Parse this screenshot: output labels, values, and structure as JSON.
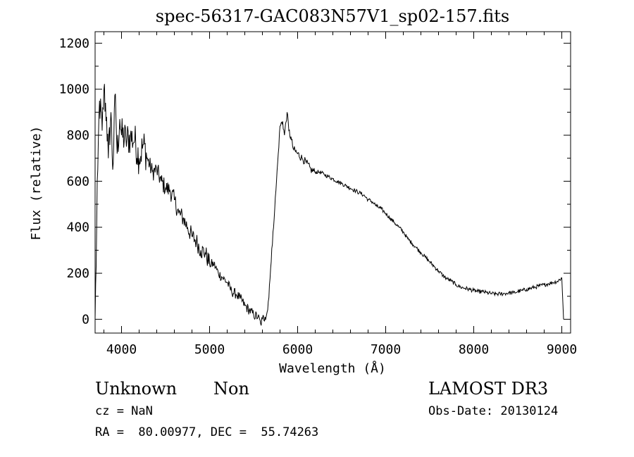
{
  "chart_data": {
    "type": "line",
    "title": "spec-56317-GAC083N57V1_sp02-157.fits",
    "xlabel": "Wavelength (Å)",
    "ylabel": "Flux (relative)",
    "xlim": [
      3700,
      9100
    ],
    "ylim": [
      -60,
      1250
    ],
    "xticks": [
      4000,
      5000,
      6000,
      7000,
      8000,
      9000
    ],
    "yticks": [
      0,
      200,
      400,
      600,
      800,
      1000,
      1200
    ],
    "grid": false,
    "series": [
      {
        "x": [
          3700,
          3730,
          3750,
          3780,
          3800,
          3830,
          3850,
          3880,
          3900,
          3930,
          3950,
          3980,
          4000,
          4050,
          4100,
          4150,
          4200,
          4250,
          4300,
          4350,
          4400,
          4450,
          4500,
          4550,
          4600,
          4650,
          4700,
          4750,
          4800,
          4850,
          4900,
          4950,
          5000,
          5050,
          5100,
          5150,
          5200,
          5250,
          5300,
          5350,
          5400,
          5450,
          5500,
          5550,
          5580,
          5600,
          5630,
          5660,
          5680,
          5700,
          5720,
          5740,
          5760,
          5780,
          5800,
          5830,
          5850,
          5880,
          5900,
          5930,
          5950,
          6000,
          6050,
          6100,
          6150,
          6200,
          6250,
          6300,
          6350,
          6400,
          6450,
          6500,
          6550,
          6600,
          6650,
          6700,
          6750,
          6800,
          6850,
          6900,
          6950,
          7000,
          7050,
          7100,
          7150,
          7200,
          7250,
          7300,
          7350,
          7400,
          7450,
          7500,
          7550,
          7600,
          7650,
          7700,
          7750,
          7800,
          7850,
          7900,
          7950,
          8000,
          8050,
          8100,
          8150,
          8200,
          8250,
          8300,
          8350,
          8400,
          8450,
          8500,
          8550,
          8600,
          8650,
          8700,
          8750,
          8800,
          8850,
          8900,
          8950,
          9000,
          9020
        ],
        "y": [
          0,
          650,
          950,
          820,
          1000,
          880,
          700,
          900,
          650,
          980,
          720,
          870,
          800,
          780,
          790,
          780,
          700,
          760,
          690,
          640,
          650,
          600,
          570,
          560,
          520,
          460,
          440,
          400,
          360,
          340,
          300,
          290,
          240,
          240,
          200,
          180,
          160,
          120,
          110,
          90,
          60,
          40,
          20,
          10,
          -20,
          0,
          10,
          40,
          150,
          250,
          380,
          480,
          600,
          720,
          840,
          860,
          800,
          900,
          820,
          780,
          740,
          720,
          700,
          680,
          650,
          640,
          640,
          630,
          620,
          610,
          600,
          590,
          580,
          570,
          560,
          550,
          540,
          520,
          510,
          490,
          480,
          460,
          440,
          420,
          400,
          380,
          350,
          330,
          310,
          290,
          270,
          250,
          230,
          210,
          190,
          175,
          165,
          150,
          140,
          135,
          130,
          125,
          120,
          120,
          115,
          112,
          110,
          110,
          112,
          115,
          115,
          120,
          125,
          130,
          135,
          140,
          145,
          150,
          155,
          160,
          165,
          180,
          0
        ]
      }
    ]
  },
  "footer": {
    "classification": "Unknown",
    "subclass": "Non",
    "survey": "LAMOST DR3",
    "cz": "cz = NaN",
    "obs_date": "Obs-Date: 20130124",
    "radec": "RA =  80.00977, DEC =  55.74263"
  }
}
